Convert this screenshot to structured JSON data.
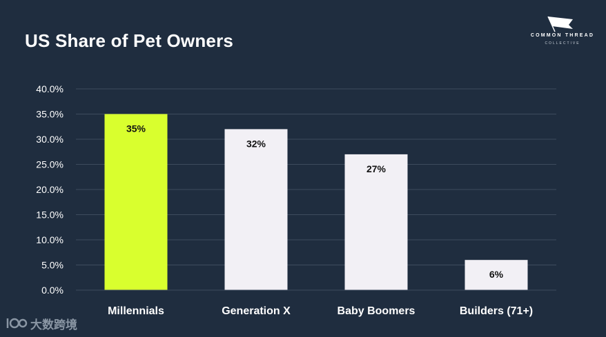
{
  "chart_data": {
    "type": "bar",
    "title": "US Share of Pet Owners",
    "categories": [
      "Millennials",
      "Generation X",
      "Baby Boomers",
      "Builders (71+)"
    ],
    "values": [
      35,
      32,
      27,
      6
    ],
    "data_labels": [
      "35%",
      "32%",
      "27%",
      "6%"
    ],
    "ylim": [
      0,
      40
    ],
    "yticks": [
      0,
      5,
      10,
      15,
      20,
      25,
      30,
      35,
      40
    ],
    "ytick_labels": [
      "0.0%",
      "5.0%",
      "10.0%",
      "15.0%",
      "20.0%",
      "25.0%",
      "30.0%",
      "35.0%",
      "40.0%"
    ],
    "xlabel": "",
    "ylabel": "",
    "grid": true,
    "bar_colors": [
      "#d9ff2e",
      "#f2f0f5",
      "#f2f0f5",
      "#f2f0f5"
    ]
  },
  "brand": {
    "name": "COMMON THREAD",
    "sub": "COLLECTIVE"
  },
  "watermark": {
    "text": "大数跨境"
  },
  "colors": {
    "background": "#1f2d3f",
    "grid": "#3e4c5e",
    "text": "#ffffff",
    "label_dark": "#111111"
  }
}
